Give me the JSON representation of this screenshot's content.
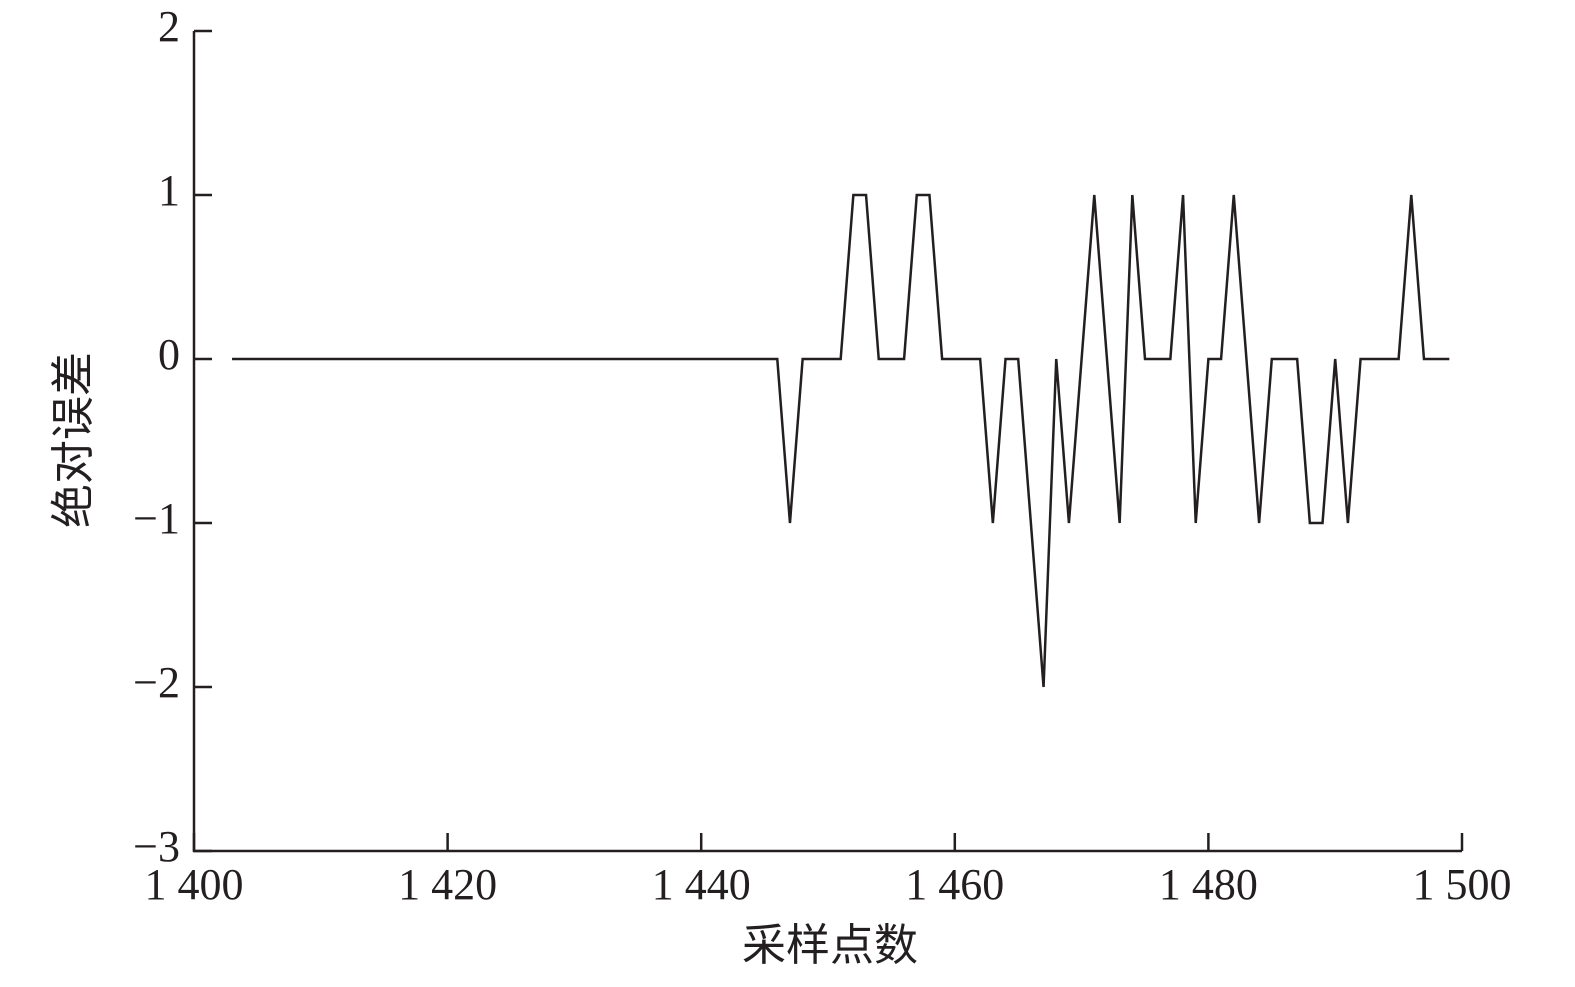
{
  "chart_data": {
    "type": "line",
    "xlabel": "采样点数",
    "ylabel": "绝对误差",
    "x": [
      1403,
      1446,
      1447,
      1448,
      1451,
      1452,
      1453,
      1454,
      1456,
      1457,
      1458,
      1459,
      1462,
      1463,
      1464,
      1465,
      1467,
      1468,
      1469,
      1471,
      1473,
      1474,
      1475,
      1477,
      1478,
      1479,
      1480,
      1481,
      1482,
      1484,
      1485,
      1487,
      1488,
      1489,
      1490,
      1491,
      1492,
      1495,
      1496,
      1497,
      1499
    ],
    "series": [
      {
        "color": "#231f20",
        "values": [
          0,
          0,
          -1,
          0,
          0,
          1,
          1,
          0,
          0,
          1,
          1,
          0,
          0,
          -1,
          0,
          0,
          -2,
          0,
          -1,
          1,
          -1,
          1,
          0,
          0,
          1,
          -1,
          0,
          0,
          1,
          -1,
          0,
          0,
          -1,
          -1,
          0,
          -1,
          0,
          0,
          1,
          0,
          0
        ]
      }
    ],
    "xlim": [
      1400,
      1500
    ],
    "xticks": [
      {
        "value": 1400,
        "label": "1 400"
      },
      {
        "value": 1420,
        "label": "1 420"
      },
      {
        "value": 1440,
        "label": "1 440"
      },
      {
        "value": 1460,
        "label": "1 460"
      },
      {
        "value": 1480,
        "label": "1 480"
      },
      {
        "value": 1500,
        "label": "1 500"
      }
    ],
    "ylim": [
      -3,
      2
    ],
    "yticks": [
      {
        "value": -3,
        "label": "−3"
      },
      {
        "value": -2,
        "label": "−2"
      },
      {
        "value": -1,
        "label": "−1"
      },
      0,
      1,
      2
    ]
  }
}
